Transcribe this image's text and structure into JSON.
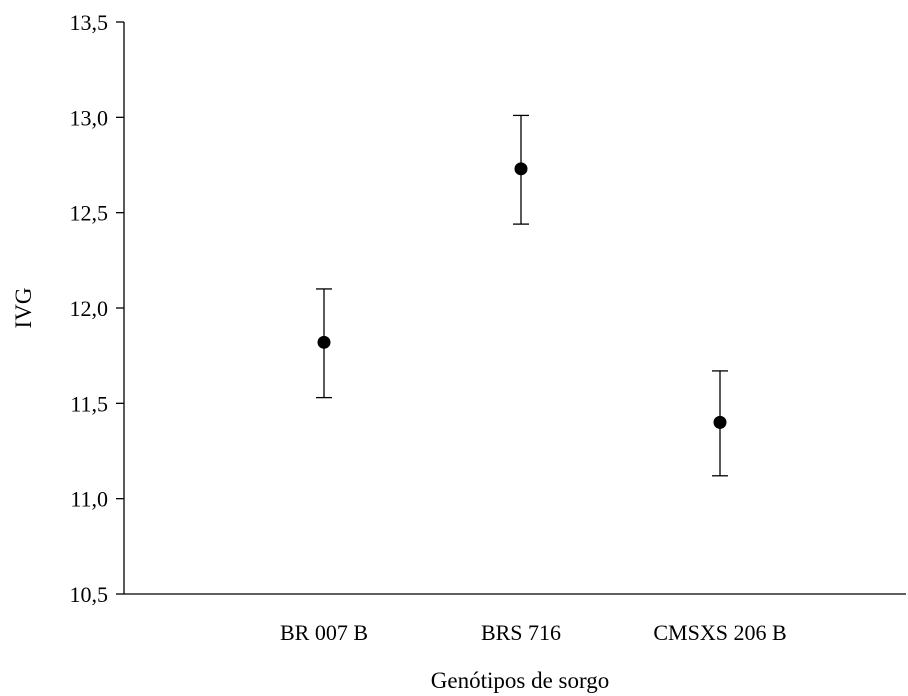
{
  "chart_data": {
    "type": "scatter",
    "xlabel": "Genótipos de sorgo",
    "ylabel": "IVG",
    "categories": [
      "BR 007 B",
      "BRS 716",
      "CMSXS 206 B"
    ],
    "series": [
      {
        "values": [
          11.82,
          12.73,
          11.4
        ],
        "error_low": [
          11.53,
          12.44,
          11.12
        ],
        "error_high": [
          12.1,
          13.01,
          11.67
        ]
      }
    ],
    "ylim": [
      10.5,
      13.5
    ],
    "yticks": [
      10.5,
      11.0,
      11.5,
      12.0,
      12.5,
      13.0,
      13.5
    ],
    "ytick_labels": [
      "10,5",
      "11,0",
      "11,5",
      "12,0",
      "12,5",
      "13,0",
      "13,5"
    ],
    "grid": false,
    "marker_color": "#000000"
  }
}
